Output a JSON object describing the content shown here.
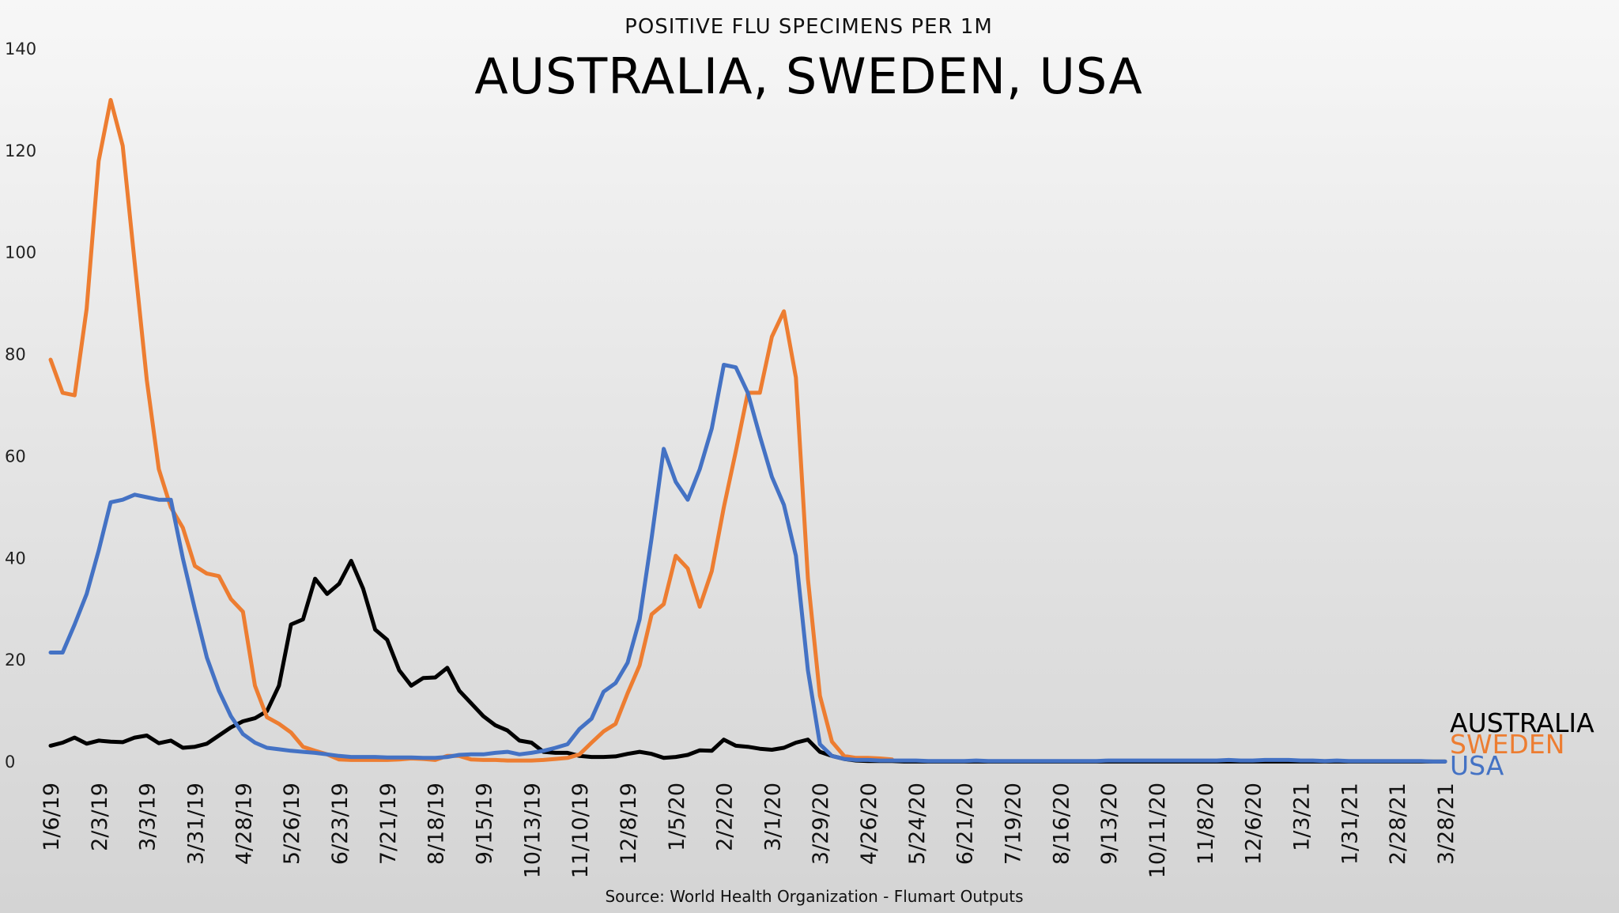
{
  "chart_data": {
    "type": "line",
    "subtitle": "POSITIVE FLU SPECIMENS PER 1M",
    "title": "AUSTRALIA, SWEDEN, USA",
    "source": "Source: World Health Organization - Flumart Outputs",
    "ylim": [
      0,
      140
    ],
    "yticks": [
      "0",
      "20",
      "40",
      "60",
      "80",
      "100",
      "120",
      "140"
    ],
    "x_weeks": 117,
    "x_tick_labels": [
      "1/6/19",
      "2/3/19",
      "3/3/19",
      "3/31/19",
      "4/28/19",
      "5/26/19",
      "6/23/19",
      "7/21/19",
      "8/18/19",
      "9/15/19",
      "10/13/19",
      "11/10/19",
      "12/8/19",
      "1/5/20",
      "2/2/20",
      "3/1/20",
      "3/29/20",
      "4/26/20",
      "5/24/20",
      "6/21/20",
      "7/19/20",
      "8/16/20",
      "9/13/20",
      "10/11/20",
      "11/8/20",
      "12/6/20",
      "1/3/21",
      "1/31/21",
      "2/28/21",
      "3/28/21"
    ],
    "x_tick_every": 4,
    "grid": false,
    "legend_position": "bottom-right",
    "series": [
      {
        "name": "AUSTRALIA",
        "color": "#000000",
        "values": [
          3.2,
          3.8,
          4.8,
          3.6,
          4.2,
          4,
          3.9,
          4.8,
          5.2,
          3.7,
          4.2,
          2.8,
          3,
          3.6,
          5.2,
          6.8,
          8,
          8.6,
          10,
          15,
          27,
          28,
          36,
          33,
          35,
          39.5,
          34,
          26,
          24,
          18,
          15,
          16.5,
          16.6,
          18.5,
          14,
          11.5,
          9,
          7.2,
          6.2,
          4.2,
          3.8,
          2,
          1.8,
          1.8,
          1.2,
          1,
          1,
          1.1,
          1.6,
          2,
          1.6,
          0.8,
          1,
          1.4,
          2.3,
          2.2,
          4.4,
          3.2,
          3,
          2.6,
          2.4,
          2.8,
          3.8,
          4.4,
          2,
          1.2,
          0.6,
          0.3,
          0.2,
          0.2,
          0.2,
          0.1,
          0.1,
          0.1,
          0.1,
          0.1,
          0.1,
          0.1,
          0.1,
          0.1,
          0.1,
          0.1,
          0.1,
          0.1,
          0.1,
          0.1,
          0.1,
          0.1,
          0.1,
          0.1,
          0.1,
          0.1,
          0.1,
          0.1,
          0.1,
          0.1,
          0.1,
          0.1,
          0.1,
          0.1,
          0.1,
          0.1,
          0.1,
          0.1,
          0.1,
          0.1,
          0.1,
          0.1,
          0.1,
          0.1,
          0.1,
          0.1,
          0.1,
          0.1,
          0.1,
          0.1,
          0.1
        ]
      },
      {
        "name": "SWEDEN",
        "color": "#ED7D31",
        "values": [
          79,
          72.5,
          72,
          89,
          118,
          130,
          121,
          98,
          75,
          57.5,
          50,
          46,
          38.5,
          37,
          36.5,
          32,
          29.5,
          15,
          8.8,
          7.5,
          5.8,
          3,
          2.2,
          1.5,
          0.5,
          0.4,
          0.4,
          0.4,
          0.4,
          0.5,
          0.7,
          0.6,
          0.4,
          1.2,
          1.2,
          0.5,
          0.4,
          0.4,
          0.3,
          0.3,
          0.3,
          0.4,
          0.6,
          0.8,
          1.5,
          3.8,
          6,
          7.5,
          13.5,
          19,
          29,
          31,
          40.5,
          38,
          30.5,
          37.5,
          50,
          61,
          72.5,
          72.5,
          83.5,
          88.5,
          75.5,
          36,
          13,
          4,
          1.2,
          0.8,
          0.8,
          0.7,
          0.5
        ]
      },
      {
        "name": "USA",
        "color": "#4472C4",
        "values": [
          21.5,
          21.5,
          27,
          33,
          41.5,
          51,
          51.5,
          52.5,
          52,
          51.5,
          51.5,
          40,
          30,
          20.5,
          14,
          9,
          5.5,
          3.8,
          2.8,
          2.5,
          2.2,
          2,
          1.8,
          1.5,
          1.2,
          1,
          1,
          1,
          0.9,
          0.9,
          0.9,
          0.8,
          0.8,
          1,
          1.4,
          1.5,
          1.5,
          1.8,
          2,
          1.5,
          1.8,
          2.2,
          2.8,
          3.5,
          6.5,
          8.5,
          13.8,
          15.5,
          19.5,
          28,
          44,
          61.5,
          55,
          51.5,
          57.5,
          65.5,
          78,
          77.5,
          72.5,
          64,
          56,
          50.5,
          40.5,
          18,
          3.5,
          1.2,
          0.6,
          0.4,
          0.4,
          0.3,
          0.3,
          0.3,
          0.3,
          0.2,
          0.2,
          0.2,
          0.2,
          0.3,
          0.2,
          0.2,
          0.2,
          0.2,
          0.2,
          0.2,
          0.2,
          0.2,
          0.2,
          0.2,
          0.3,
          0.3,
          0.3,
          0.3,
          0.3,
          0.3,
          0.3,
          0.3,
          0.3,
          0.3,
          0.4,
          0.3,
          0.3,
          0.4,
          0.4,
          0.4,
          0.3,
          0.3,
          0.2,
          0.3,
          0.2,
          0.2,
          0.2,
          0.2,
          0.2,
          0.2,
          0.2,
          0.1,
          0.1
        ]
      }
    ]
  }
}
